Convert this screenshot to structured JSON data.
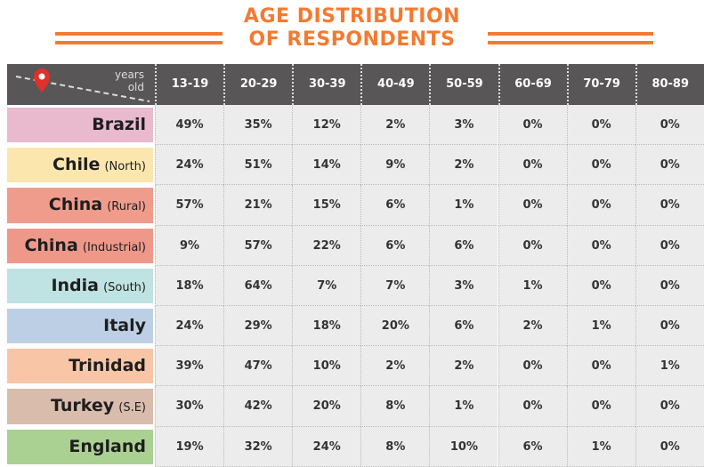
{
  "title": [
    "AGE DISTRIBUTION",
    "OF RESPONDENTS"
  ],
  "header": {
    "corner": [
      "years",
      "old"
    ],
    "columns": [
      "13-19",
      "20-29",
      "30-39",
      "40-49",
      "50-59",
      "60-69",
      "70-79",
      "80-89"
    ]
  },
  "rows": [
    {
      "name": "Brazil",
      "values": [
        "49%",
        "35%",
        "12%",
        "2%",
        "3%",
        "0%",
        "0%",
        "0%"
      ]
    },
    {
      "name": "Chile",
      "note": "(North)",
      "values": [
        "24%",
        "51%",
        "14%",
        "9%",
        "2%",
        "0%",
        "0%",
        "0%"
      ]
    },
    {
      "name": "China",
      "note": "(Rural)",
      "values": [
        "57%",
        "21%",
        "15%",
        "6%",
        "1%",
        "0%",
        "0%",
        "0%"
      ]
    },
    {
      "name": "China",
      "note": "(Industrial)",
      "values": [
        "9%",
        "57%",
        "22%",
        "6%",
        "6%",
        "0%",
        "0%",
        "0%"
      ]
    },
    {
      "name": "India",
      "note": "(South)",
      "values": [
        "18%",
        "64%",
        "7%",
        "7%",
        "3%",
        "1%",
        "0%",
        "0%"
      ]
    },
    {
      "name": "Italy",
      "values": [
        "24%",
        "29%",
        "18%",
        "20%",
        "6%",
        "2%",
        "1%",
        "0%"
      ]
    },
    {
      "name": "Trinidad",
      "values": [
        "39%",
        "47%",
        "10%",
        "2%",
        "2%",
        "0%",
        "0%",
        "1%"
      ]
    },
    {
      "name": "Turkey",
      "note": "(S.E)",
      "values": [
        "30%",
        "42%",
        "20%",
        "8%",
        "1%",
        "0%",
        "0%",
        "0%"
      ]
    },
    {
      "name": "England",
      "values": [
        "19%",
        "32%",
        "24%",
        "8%",
        "10%",
        "6%",
        "1%",
        "0%"
      ]
    }
  ]
}
